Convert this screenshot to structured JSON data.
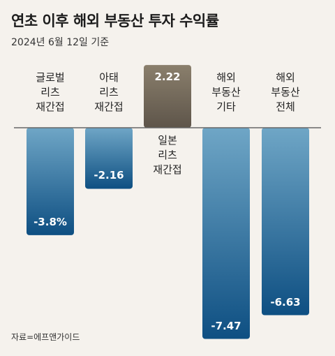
{
  "title": "연초 이후 해외 부동산 투자 수익률",
  "subtitle": "2024년 6월 12일 기준",
  "source": "자료=에프앤가이드",
  "colors": {
    "negative_top": "#6fa6c6",
    "negative_bottom": "#0e4f82",
    "positive_top": "#8a7f6c",
    "positive_bottom": "#5e554a",
    "baseline": "#666666",
    "background": "#f5f2ed"
  },
  "chart_data": {
    "type": "bar",
    "categories": [
      "글로벌\n리츠\n재간접",
      "아태\n리츠\n재간접",
      "일본\n리츠\n재간접",
      "해외\n부동산\n기타",
      "해외\n부동산\n전체"
    ],
    "values": [
      -3.8,
      -2.16,
      2.22,
      -7.47,
      -6.63
    ],
    "value_labels": [
      "-3.8%",
      "-2.16",
      "2.22",
      "-7.47",
      "-6.63"
    ],
    "title": "연초 이후 해외 부동산 투자 수익률",
    "ylim": [
      -8,
      2.5
    ]
  }
}
